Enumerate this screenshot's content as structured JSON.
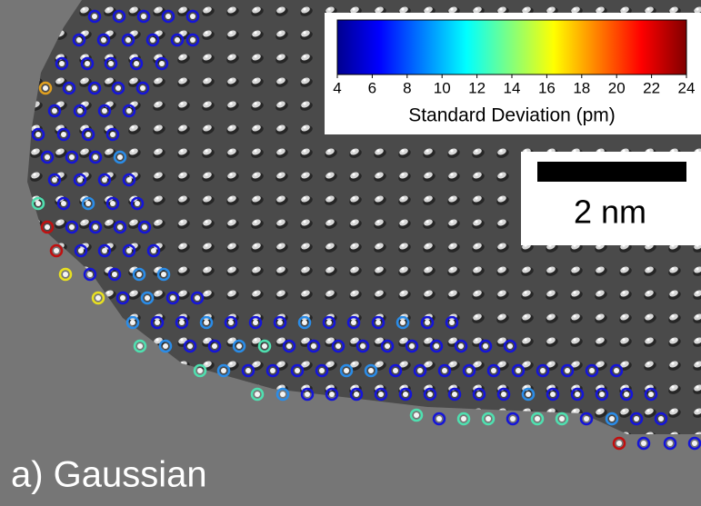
{
  "colorbar": {
    "ticks": [
      4,
      6,
      8,
      10,
      12,
      14,
      16,
      18,
      20,
      22,
      24
    ],
    "label": "Standard Deviation (pm)"
  },
  "scale_bar": {
    "label": "2 nm"
  },
  "panel_label": "a) Gaussian"
}
